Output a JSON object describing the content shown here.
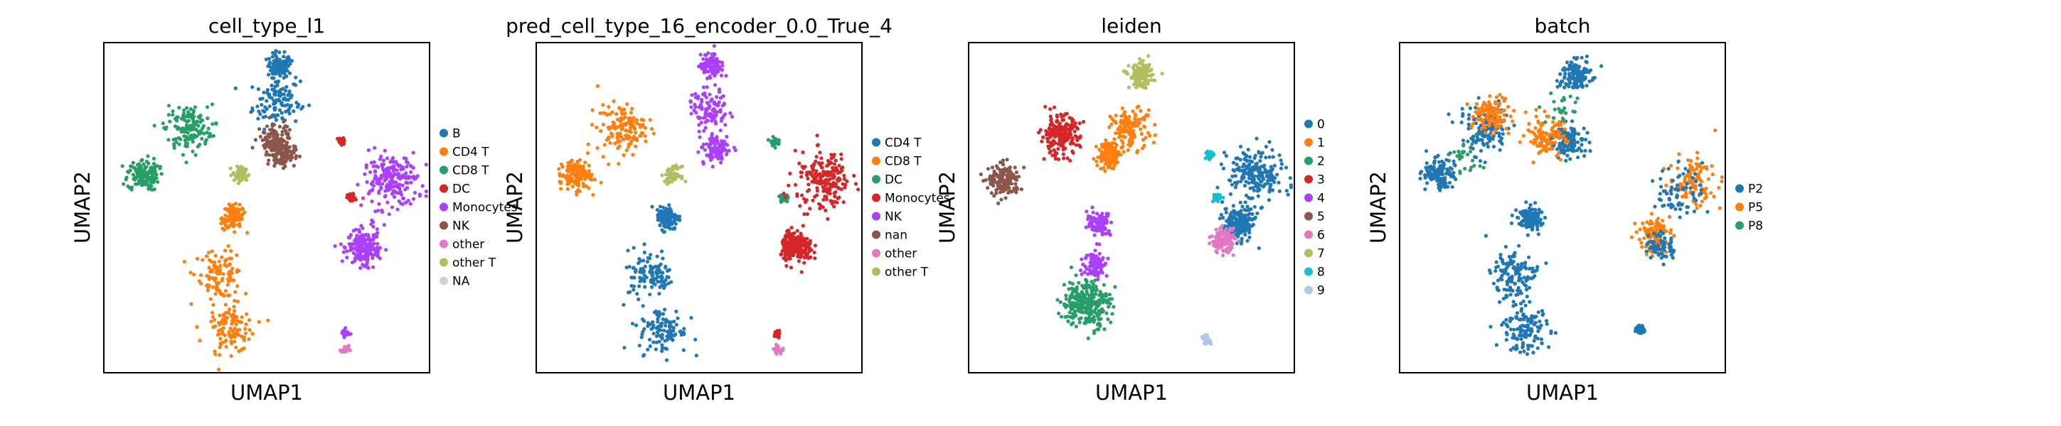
{
  "chart_data": [
    {
      "type": "scatter",
      "title": "cell_type_l1",
      "xlabel": "UMAP1",
      "ylabel": "UMAP2",
      "grid": false,
      "legend_placement": "right",
      "legend": [
        {
          "label": "B",
          "color": "#1f77b4"
        },
        {
          "label": "CD4 T",
          "color": "#ff7f0e"
        },
        {
          "label": "CD8 T",
          "color": "#279e68"
        },
        {
          "label": "DC",
          "color": "#d62728"
        },
        {
          "label": "Monocytes",
          "color": "#aa40fc"
        },
        {
          "label": "NK",
          "color": "#8c564b"
        },
        {
          "label": "other",
          "color": "#e377c2"
        },
        {
          "label": "other T",
          "color": "#b5bd61"
        },
        {
          "label": "NA",
          "color": "#d3d3d3"
        }
      ],
      "clusters": [
        {
          "label": "B",
          "x": [
            0.54,
            0.53
          ],
          "y": [
            0.93,
            0.82
          ],
          "spread": [
            0.03,
            0.06
          ],
          "n": 240
        },
        {
          "label": "CD4 T",
          "x": [
            0.35,
            0.39,
            0.4
          ],
          "y": [
            0.3,
            0.13,
            0.47
          ],
          "spread": [
            0.06,
            0.06,
            0.03
          ],
          "n": 320
        },
        {
          "label": "CD8 T",
          "x": [
            0.12,
            0.26
          ],
          "y": [
            0.6,
            0.74
          ],
          "spread": [
            0.04,
            0.06
          ],
          "n": 280
        },
        {
          "label": "DC",
          "x": [
            0.73,
            0.76
          ],
          "y": [
            0.7,
            0.53
          ],
          "spread": [
            0.01,
            0.01
          ],
          "n": 70
        },
        {
          "label": "Monocytes",
          "x": [
            0.88,
            0.8
          ],
          "y": [
            0.58,
            0.38
          ],
          "spread": [
            0.07,
            0.04
          ],
          "n": 400
        },
        {
          "label": "Monocytes",
          "x": [
            0.74
          ],
          "y": [
            0.12
          ],
          "spread": [
            0.01
          ],
          "n": 30
        },
        {
          "label": "NK",
          "x": [
            0.52,
            0.55
          ],
          "y": [
            0.71,
            0.66
          ],
          "spread": [
            0.04,
            0.03
          ],
          "n": 200
        },
        {
          "label": "other",
          "x": [
            0.74
          ],
          "y": [
            0.07
          ],
          "spread": [
            0.01
          ],
          "n": 20
        },
        {
          "label": "other T",
          "x": [
            0.42
          ],
          "y": [
            0.6
          ],
          "spread": [
            0.02
          ],
          "n": 60
        }
      ]
    },
    {
      "type": "scatter",
      "title": "pred_cell_type_16_encoder_0.0_True_4",
      "xlabel": "UMAP1",
      "ylabel": "UMAP2",
      "grid": false,
      "legend_placement": "right",
      "legend": [
        {
          "label": "CD4 T",
          "color": "#1f77b4"
        },
        {
          "label": "CD8 T",
          "color": "#ff7f0e"
        },
        {
          "label": "DC",
          "color": "#279e68"
        },
        {
          "label": "Monocytes",
          "color": "#d62728"
        },
        {
          "label": "NK",
          "color": "#aa40fc"
        },
        {
          "label": "nan",
          "color": "#8c564b"
        },
        {
          "label": "other",
          "color": "#e377c2"
        },
        {
          "label": "other T",
          "color": "#b5bd61"
        }
      ],
      "clusters": [
        {
          "label": "CD4 T",
          "x": [
            0.35,
            0.39,
            0.4
          ],
          "y": [
            0.3,
            0.13,
            0.47
          ],
          "spread": [
            0.06,
            0.06,
            0.03
          ],
          "n": 320
        },
        {
          "label": "CD8 T",
          "x": [
            0.12,
            0.26
          ],
          "y": [
            0.6,
            0.74
          ],
          "spread": [
            0.04,
            0.06
          ],
          "n": 280
        },
        {
          "label": "NK",
          "x": [
            0.54,
            0.53,
            0.55
          ],
          "y": [
            0.93,
            0.8,
            0.68
          ],
          "spread": [
            0.03,
            0.05,
            0.04
          ],
          "n": 300
        },
        {
          "label": "DC",
          "x": [
            0.73,
            0.76
          ],
          "y": [
            0.7,
            0.53
          ],
          "spread": [
            0.01,
            0.01
          ],
          "n": 70
        },
        {
          "label": "Monocytes",
          "x": [
            0.88,
            0.8
          ],
          "y": [
            0.58,
            0.38
          ],
          "spread": [
            0.07,
            0.04
          ],
          "n": 400
        },
        {
          "label": "Monocytes",
          "x": [
            0.74
          ],
          "y": [
            0.12
          ],
          "spread": [
            0.01
          ],
          "n": 30
        },
        {
          "label": "other",
          "x": [
            0.74
          ],
          "y": [
            0.07
          ],
          "spread": [
            0.01
          ],
          "n": 20
        },
        {
          "label": "other T",
          "x": [
            0.42
          ],
          "y": [
            0.6
          ],
          "spread": [
            0.02
          ],
          "n": 60
        }
      ]
    },
    {
      "type": "scatter",
      "title": "leiden",
      "xlabel": "UMAP1",
      "ylabel": "UMAP2",
      "grid": false,
      "legend_placement": "right",
      "legend": [
        {
          "label": "0",
          "color": "#1f77b4"
        },
        {
          "label": "1",
          "color": "#ff7f0e"
        },
        {
          "label": "2",
          "color": "#279e68"
        },
        {
          "label": "3",
          "color": "#d62728"
        },
        {
          "label": "4",
          "color": "#aa40fc"
        },
        {
          "label": "5",
          "color": "#8c564b"
        },
        {
          "label": "6",
          "color": "#e377c2"
        },
        {
          "label": "7",
          "color": "#b5bd61"
        },
        {
          "label": "8",
          "color": "#17becf"
        },
        {
          "label": "9",
          "color": "#aec7e8"
        }
      ],
      "clusters": [
        {
          "label": "0",
          "x": [
            0.88,
            0.83
          ],
          "y": [
            0.6,
            0.45
          ],
          "spread": [
            0.07,
            0.04
          ],
          "n": 400
        },
        {
          "label": "1",
          "x": [
            0.5,
            0.43
          ],
          "y": [
            0.74,
            0.66
          ],
          "spread": [
            0.05,
            0.03
          ],
          "n": 260
        },
        {
          "label": "2",
          "x": [
            0.36
          ],
          "y": [
            0.21
          ],
          "spread": [
            0.06
          ],
          "n": 280
        },
        {
          "label": "3",
          "x": [
            0.28
          ],
          "y": [
            0.72
          ],
          "spread": [
            0.05
          ],
          "n": 200
        },
        {
          "label": "4",
          "x": [
            0.4,
            0.39
          ],
          "y": [
            0.45,
            0.33
          ],
          "spread": [
            0.03,
            0.03
          ],
          "n": 200
        },
        {
          "label": "5",
          "x": [
            0.11
          ],
          "y": [
            0.58
          ],
          "spread": [
            0.04
          ],
          "n": 160
        },
        {
          "label": "6",
          "x": [
            0.78
          ],
          "y": [
            0.4
          ],
          "spread": [
            0.03
          ],
          "n": 120
        },
        {
          "label": "7",
          "x": [
            0.53
          ],
          "y": [
            0.9
          ],
          "spread": [
            0.03
          ],
          "n": 140
        },
        {
          "label": "8",
          "x": [
            0.74,
            0.76
          ],
          "y": [
            0.66,
            0.53
          ],
          "spread": [
            0.01,
            0.01
          ],
          "n": 70
        },
        {
          "label": "9",
          "x": [
            0.73
          ],
          "y": [
            0.1
          ],
          "spread": [
            0.01
          ],
          "n": 40
        }
      ]
    },
    {
      "type": "scatter",
      "title": "batch",
      "xlabel": "UMAP1",
      "ylabel": "UMAP2",
      "grid": false,
      "legend_placement": "right",
      "legend": [
        {
          "label": "P2",
          "color": "#1f77b4"
        },
        {
          "label": "P5",
          "color": "#ff7f0e"
        },
        {
          "label": "P8",
          "color": "#279e68"
        }
      ],
      "clusters": [
        {
          "label": "P2",
          "x": [
            0.54,
            0.35,
            0.39,
            0.12,
            0.26,
            0.52,
            0.4
          ],
          "y": [
            0.9,
            0.3,
            0.13,
            0.6,
            0.74,
            0.7,
            0.47
          ],
          "spread": [
            0.04,
            0.06,
            0.06,
            0.04,
            0.06,
            0.04,
            0.03
          ],
          "n": 900
        },
        {
          "label": "P5",
          "x": [
            0.9,
            0.78,
            0.45,
            0.28
          ],
          "y": [
            0.58,
            0.42,
            0.72,
            0.78
          ],
          "spread": [
            0.06,
            0.04,
            0.05,
            0.05
          ],
          "n": 420
        },
        {
          "label": "P2",
          "x": [
            0.86,
            0.8,
            0.74
          ],
          "y": [
            0.55,
            0.38,
            0.13
          ],
          "spread": [
            0.06,
            0.04,
            0.01
          ],
          "n": 200
        },
        {
          "label": "P8",
          "x": [
            0.2,
            0.5
          ],
          "y": [
            0.66,
            0.8
          ],
          "spread": [
            0.05,
            0.04
          ],
          "n": 50
        }
      ]
    }
  ]
}
